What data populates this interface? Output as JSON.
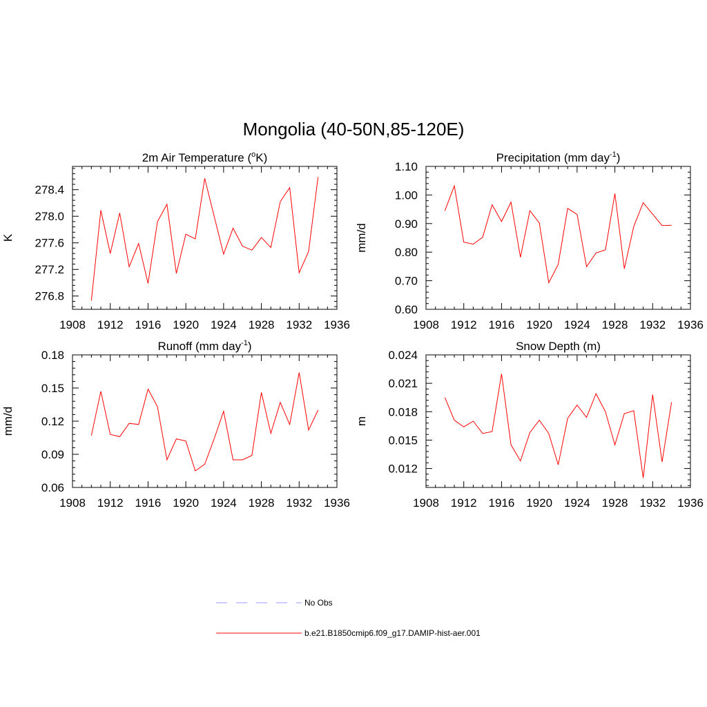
{
  "figure": {
    "title": "Mongolia (40-50N,85-120E)"
  },
  "colors": {
    "model": "#ff0000",
    "obs": "#9999ff"
  },
  "legend": {
    "placement": "bottom-center",
    "entries": [
      {
        "label": "No Obs",
        "style": "dashed",
        "color": "#9999ff"
      },
      {
        "label": "b.e21.B1850cmip6.f09_g17.DAMIP-hist-aer.001",
        "style": "solid",
        "color": "#ff0000"
      }
    ]
  },
  "chart_data": [
    {
      "type": "line",
      "title": "2m Air Temperature (",
      "title_sup": "o",
      "title_after": "K)",
      "ylabel": "K",
      "xlim": [
        1908,
        1936
      ],
      "ylim": [
        276.6,
        278.75
      ],
      "x_ticks": [
        1908,
        1912,
        1916,
        1920,
        1924,
        1928,
        1932,
        1936
      ],
      "y_ticks": [
        276.8,
        277.2,
        277.6,
        278.0,
        278.4
      ],
      "y_tick_labels": [
        "276.8",
        "277.2",
        "277.6",
        "278.0",
        "278.4"
      ],
      "x": [
        1910,
        1911,
        1912,
        1913,
        1914,
        1915,
        1916,
        1917,
        1918,
        1919,
        1920,
        1921,
        1922,
        1923,
        1924,
        1925,
        1926,
        1927,
        1928,
        1929,
        1930,
        1931,
        1932,
        1933,
        1934
      ],
      "series": [
        {
          "values": [
            276.73,
            278.09,
            277.44,
            278.05,
            277.24,
            277.59,
            276.99,
            277.92,
            278.18,
            277.14,
            277.73,
            277.66,
            278.57,
            278.0,
            277.43,
            277.82,
            277.55,
            277.49,
            277.68,
            277.53,
            278.22,
            278.43,
            277.15,
            277.47,
            278.59
          ]
        }
      ]
    },
    {
      "type": "line",
      "title": "Precipitation (mm day",
      "title_sup": "-1",
      "title_after": ")",
      "ylabel": "mm/d",
      "xlim": [
        1908,
        1936
      ],
      "ylim": [
        0.6,
        1.1
      ],
      "x_ticks": [
        1908,
        1912,
        1916,
        1920,
        1924,
        1928,
        1932,
        1936
      ],
      "y_ticks": [
        0.6,
        0.7,
        0.8,
        0.9,
        1.0,
        1.1
      ],
      "y_tick_labels": [
        "0.60",
        "0.70",
        "0.80",
        "0.90",
        "1.00",
        "1.10"
      ],
      "x": [
        1910,
        1911,
        1912,
        1913,
        1914,
        1915,
        1916,
        1917,
        1918,
        1919,
        1920,
        1921,
        1922,
        1923,
        1924,
        1925,
        1926,
        1927,
        1928,
        1929,
        1930,
        1931,
        1932,
        1933,
        1934
      ],
      "series": [
        {
          "values": [
            0.945,
            1.032,
            0.835,
            0.828,
            0.852,
            0.966,
            0.907,
            0.975,
            0.782,
            0.945,
            0.902,
            0.693,
            0.757,
            0.953,
            0.932,
            0.749,
            0.797,
            0.808,
            1.005,
            0.742,
            0.89,
            0.973,
            0.933,
            0.893,
            0.894
          ]
        }
      ]
    },
    {
      "type": "line",
      "title": "Runoff (mm day",
      "title_sup": "-1",
      "title_after": ")",
      "ylabel": "mm/d",
      "xlim": [
        1908,
        1936
      ],
      "ylim": [
        0.06,
        0.18
      ],
      "x_ticks": [
        1908,
        1912,
        1916,
        1920,
        1924,
        1928,
        1932,
        1936
      ],
      "y_ticks": [
        0.06,
        0.09,
        0.12,
        0.15,
        0.18
      ],
      "y_tick_labels": [
        "0.06",
        "0.09",
        "0.12",
        "0.15",
        "0.18"
      ],
      "x": [
        1910,
        1911,
        1912,
        1913,
        1914,
        1915,
        1916,
        1917,
        1918,
        1919,
        1920,
        1921,
        1922,
        1923,
        1924,
        1925,
        1926,
        1927,
        1928,
        1929,
        1930,
        1931,
        1932,
        1933,
        1934
      ],
      "series": [
        {
          "values": [
            0.107,
            0.147,
            0.108,
            0.106,
            0.118,
            0.117,
            0.149,
            0.133,
            0.085,
            0.104,
            0.102,
            0.075,
            0.081,
            0.104,
            0.129,
            0.085,
            0.085,
            0.089,
            0.146,
            0.109,
            0.137,
            0.117,
            0.164,
            0.112,
            0.13
          ]
        }
      ]
    },
    {
      "type": "line",
      "title": "Snow Depth (m)",
      "title_sup": "",
      "title_after": "",
      "ylabel": "m",
      "xlim": [
        1908,
        1936
      ],
      "ylim": [
        0.01,
        0.024
      ],
      "x_ticks": [
        1908,
        1912,
        1916,
        1920,
        1924,
        1928,
        1932,
        1936
      ],
      "y_ticks": [
        0.012,
        0.015,
        0.018,
        0.021,
        0.024
      ],
      "y_tick_labels": [
        "0.012",
        "0.015",
        "0.018",
        "0.021",
        "0.024"
      ],
      "x": [
        1910,
        1911,
        1912,
        1913,
        1914,
        1915,
        1916,
        1917,
        1918,
        1919,
        1920,
        1921,
        1922,
        1923,
        1924,
        1925,
        1926,
        1927,
        1928,
        1929,
        1930,
        1931,
        1932,
        1933,
        1934
      ],
      "series": [
        {
          "values": [
            0.0195,
            0.0171,
            0.0164,
            0.017,
            0.0157,
            0.0159,
            0.022,
            0.0145,
            0.0128,
            0.0158,
            0.0171,
            0.0157,
            0.0124,
            0.0173,
            0.0187,
            0.0174,
            0.0199,
            0.018,
            0.0145,
            0.0178,
            0.0181,
            0.011,
            0.0198,
            0.0127,
            0.019
          ]
        }
      ]
    }
  ]
}
